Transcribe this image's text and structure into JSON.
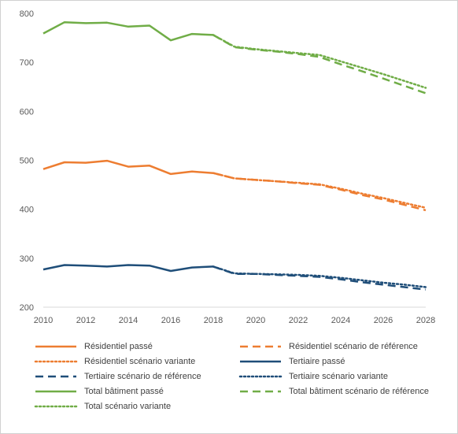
{
  "chart_data": {
    "type": "line",
    "title": "",
    "xlabel": "",
    "ylabel": "",
    "xlim": [
      2010,
      2028
    ],
    "ylim": [
      200,
      800
    ],
    "x_ticks": [
      "2010",
      "2012",
      "2014",
      "2016",
      "2018",
      "2020",
      "2022",
      "2024",
      "2026",
      "2028"
    ],
    "y_ticks": [
      "200",
      "300",
      "400",
      "500",
      "600",
      "700",
      "800"
    ],
    "grid": false,
    "legend_position": "bottom",
    "colors": {
      "residentiel": "#ed7d31",
      "tertiaire": "#1f4e79",
      "total": "#70ad47"
    },
    "series": [
      {
        "name": "Résidentiel passé",
        "color": "#ed7d31",
        "style": "solid",
        "x": [
          2010,
          2011,
          2012,
          2013,
          2014,
          2015,
          2016,
          2017,
          2018
        ],
        "y": [
          482,
          496,
          495,
          499,
          487,
          489,
          472,
          477,
          474
        ]
      },
      {
        "name": "Résidentiel scénario de référence",
        "color": "#ed7d31",
        "style": "dashed",
        "x": [
          2018,
          2019,
          2020,
          2021,
          2022,
          2023,
          2024,
          2025,
          2026,
          2027,
          2028
        ],
        "y": [
          474,
          463,
          460,
          457,
          453,
          450,
          440,
          429,
          420,
          409,
          398
        ]
      },
      {
        "name": "Résidentiel scénario variante",
        "color": "#ed7d31",
        "style": "dotted",
        "x": [
          2018,
          2019,
          2020,
          2021,
          2022,
          2023,
          2024,
          2025,
          2026,
          2027,
          2028
        ],
        "y": [
          474,
          463,
          460,
          457,
          454,
          451,
          442,
          432,
          423,
          413,
          403
        ]
      },
      {
        "name": "Tertiaire passé",
        "color": "#1f4e79",
        "style": "solid",
        "x": [
          2010,
          2011,
          2012,
          2013,
          2014,
          2015,
          2016,
          2017,
          2018
        ],
        "y": [
          277,
          286,
          285,
          283,
          286,
          285,
          274,
          281,
          283
        ]
      },
      {
        "name": "Tertiaire scénario de référence",
        "color": "#1f4e79",
        "style": "dashed",
        "x": [
          2018,
          2019,
          2020,
          2021,
          2022,
          2023,
          2024,
          2025,
          2026,
          2027,
          2028
        ],
        "y": [
          283,
          268,
          268,
          266,
          264,
          262,
          257,
          251,
          246,
          241,
          236
        ]
      },
      {
        "name": "Tertiaire scénario variante",
        "color": "#1f4e79",
        "style": "dotted",
        "x": [
          2018,
          2019,
          2020,
          2021,
          2022,
          2023,
          2024,
          2025,
          2026,
          2027,
          2028
        ],
        "y": [
          283,
          269,
          268,
          267,
          266,
          264,
          260,
          255,
          250,
          246,
          241
        ]
      },
      {
        "name": "Total bâtiment passé",
        "color": "#70ad47",
        "style": "solid",
        "x": [
          2010,
          2011,
          2012,
          2013,
          2014,
          2015,
          2016,
          2017,
          2018
        ],
        "y": [
          759,
          782,
          780,
          781,
          773,
          775,
          745,
          758,
          756
        ]
      },
      {
        "name": "Total bâtiment scénario de référence",
        "color": "#70ad47",
        "style": "dashed",
        "x": [
          2018,
          2019,
          2020,
          2021,
          2022,
          2023,
          2024,
          2025,
          2026,
          2027,
          2028
        ],
        "y": [
          756,
          731,
          726,
          722,
          717,
          711,
          696,
          682,
          667,
          652,
          637
        ]
      },
      {
        "name": "Total scénario variante",
        "color": "#70ad47",
        "style": "dotted",
        "x": [
          2018,
          2019,
          2020,
          2021,
          2022,
          2023,
          2024,
          2025,
          2026,
          2027,
          2028
        ],
        "y": [
          756,
          732,
          727,
          723,
          719,
          715,
          702,
          689,
          676,
          662,
          648
        ]
      }
    ]
  }
}
